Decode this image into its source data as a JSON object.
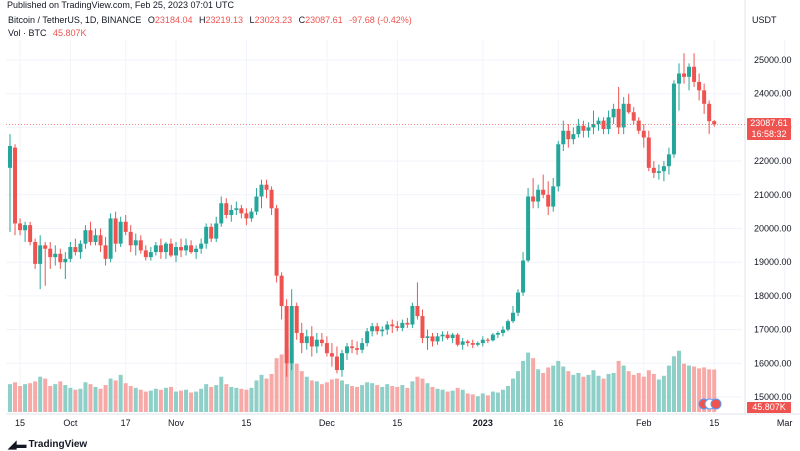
{
  "header": {
    "published": "Published on TradingView.com, Feb 25, 2023 07:01 UTC",
    "symbol": "Bitcoin / TetherUS, 1D, BINANCE",
    "ohlc": {
      "o_label": "O",
      "o": "23184.04",
      "h_label": "H",
      "h": "23219.13",
      "l_label": "L",
      "l": "23023.23",
      "c_label": "C",
      "c": "23087.61",
      "change": "-97.68 (-0.42%)"
    },
    "volume_label": "Vol · BTC",
    "volume_value": "45.807K",
    "currency": "USDT"
  },
  "price_tag": {
    "price": "23087.61",
    "countdown": "16:58:32"
  },
  "volume_tag": "45.807K",
  "branding": "TradingView",
  "colors": {
    "up": "#26a69a",
    "down": "#ef5350",
    "vol_up": "#8ecfc8",
    "vol_down": "#f7a9a7",
    "grid": "#f0f3fa"
  },
  "chart_data": {
    "type": "candlestick",
    "y_axis_ticks": [
      "25000.00",
      "24000.00",
      "23000.00",
      "22000.00",
      "21000.00",
      "20000.00",
      "19000.00",
      "18000.00",
      "17000.00",
      "16000.00",
      "15000.00"
    ],
    "ylim": [
      14700,
      25500
    ],
    "x_axis_ticks": [
      {
        "label": "15",
        "index": 2
      },
      {
        "label": "Oct",
        "index": 12
      },
      {
        "label": "17",
        "index": 23
      },
      {
        "label": "Nov",
        "index": 33
      },
      {
        "label": "15",
        "index": 47
      },
      {
        "label": "Dec",
        "index": 63
      },
      {
        "label": "15",
        "index": 77
      },
      {
        "label": "2023",
        "index": 94
      },
      {
        "label": "16",
        "index": 109
      },
      {
        "label": "Feb",
        "index": 126
      },
      {
        "label": "15",
        "index": 140
      },
      {
        "label": "Mar",
        "index": 154
      }
    ],
    "last_close": 23087.61,
    "volume_max": 70000,
    "candles": [
      {
        "o": 21800,
        "h": 22800,
        "l": 19900,
        "c": 22450,
        "v": 30000
      },
      {
        "o": 22400,
        "h": 22500,
        "l": 19800,
        "c": 20150,
        "v": 32000
      },
      {
        "o": 20150,
        "h": 20300,
        "l": 19800,
        "c": 19950,
        "v": 28000
      },
      {
        "o": 19950,
        "h": 20200,
        "l": 19600,
        "c": 20100,
        "v": 30000
      },
      {
        "o": 20100,
        "h": 20200,
        "l": 19500,
        "c": 19600,
        "v": 31000
      },
      {
        "o": 19600,
        "h": 19700,
        "l": 18800,
        "c": 18950,
        "v": 33000
      },
      {
        "o": 18950,
        "h": 19800,
        "l": 18200,
        "c": 19500,
        "v": 38000
      },
      {
        "o": 19500,
        "h": 19600,
        "l": 18300,
        "c": 19400,
        "v": 36000
      },
      {
        "o": 19400,
        "h": 19600,
        "l": 18800,
        "c": 19150,
        "v": 28000
      },
      {
        "o": 19150,
        "h": 19500,
        "l": 18900,
        "c": 19250,
        "v": 30000
      },
      {
        "o": 19250,
        "h": 19400,
        "l": 18800,
        "c": 19000,
        "v": 33000
      },
      {
        "o": 19000,
        "h": 19300,
        "l": 18500,
        "c": 19100,
        "v": 29000
      },
      {
        "o": 19100,
        "h": 19600,
        "l": 19000,
        "c": 19450,
        "v": 26000
      },
      {
        "o": 19450,
        "h": 19700,
        "l": 19200,
        "c": 19300,
        "v": 24000
      },
      {
        "o": 19300,
        "h": 19650,
        "l": 19100,
        "c": 19550,
        "v": 25000
      },
      {
        "o": 19550,
        "h": 20100,
        "l": 19400,
        "c": 19950,
        "v": 32000
      },
      {
        "o": 19950,
        "h": 20200,
        "l": 19500,
        "c": 19600,
        "v": 30000
      },
      {
        "o": 19600,
        "h": 20000,
        "l": 19500,
        "c": 19800,
        "v": 27000
      },
      {
        "o": 19800,
        "h": 20000,
        "l": 19300,
        "c": 19500,
        "v": 25000
      },
      {
        "o": 19500,
        "h": 19750,
        "l": 18900,
        "c": 19100,
        "v": 29000
      },
      {
        "o": 19100,
        "h": 20450,
        "l": 19000,
        "c": 20300,
        "v": 36000
      },
      {
        "o": 20300,
        "h": 20500,
        "l": 19300,
        "c": 19550,
        "v": 34000
      },
      {
        "o": 19550,
        "h": 20350,
        "l": 19450,
        "c": 20200,
        "v": 40000
      },
      {
        "o": 20200,
        "h": 20400,
        "l": 19800,
        "c": 19900,
        "v": 31000
      },
      {
        "o": 19900,
        "h": 20100,
        "l": 19300,
        "c": 19500,
        "v": 28000
      },
      {
        "o": 19500,
        "h": 19850,
        "l": 19200,
        "c": 19650,
        "v": 26000
      },
      {
        "o": 19650,
        "h": 19800,
        "l": 19250,
        "c": 19350,
        "v": 24000
      },
      {
        "o": 19350,
        "h": 19500,
        "l": 19050,
        "c": 19150,
        "v": 22000
      },
      {
        "o": 19150,
        "h": 19450,
        "l": 19050,
        "c": 19300,
        "v": 23000
      },
      {
        "o": 19300,
        "h": 19600,
        "l": 19200,
        "c": 19500,
        "v": 25000
      },
      {
        "o": 19500,
        "h": 19700,
        "l": 19100,
        "c": 19300,
        "v": 24000
      },
      {
        "o": 19300,
        "h": 19600,
        "l": 19100,
        "c": 19550,
        "v": 26000
      },
      {
        "o": 19550,
        "h": 19700,
        "l": 19150,
        "c": 19200,
        "v": 27000
      },
      {
        "o": 19200,
        "h": 19600,
        "l": 19000,
        "c": 19450,
        "v": 22000
      },
      {
        "o": 19450,
        "h": 19700,
        "l": 19150,
        "c": 19350,
        "v": 23000
      },
      {
        "o": 19350,
        "h": 19700,
        "l": 19200,
        "c": 19500,
        "v": 24000
      },
      {
        "o": 19500,
        "h": 19650,
        "l": 19250,
        "c": 19300,
        "v": 21000
      },
      {
        "o": 19300,
        "h": 19500,
        "l": 19100,
        "c": 19400,
        "v": 22000
      },
      {
        "o": 19400,
        "h": 19700,
        "l": 19250,
        "c": 19550,
        "v": 25000
      },
      {
        "o": 19550,
        "h": 20150,
        "l": 19400,
        "c": 20050,
        "v": 30000
      },
      {
        "o": 20050,
        "h": 20150,
        "l": 19600,
        "c": 19700,
        "v": 27000
      },
      {
        "o": 19700,
        "h": 20350,
        "l": 19600,
        "c": 20150,
        "v": 29000
      },
      {
        "o": 20150,
        "h": 20950,
        "l": 20050,
        "c": 20750,
        "v": 38000
      },
      {
        "o": 20750,
        "h": 20900,
        "l": 20300,
        "c": 20400,
        "v": 30000
      },
      {
        "o": 20400,
        "h": 20700,
        "l": 20200,
        "c": 20550,
        "v": 27000
      },
      {
        "o": 20550,
        "h": 20800,
        "l": 20400,
        "c": 20600,
        "v": 26000
      },
      {
        "o": 20600,
        "h": 20700,
        "l": 20300,
        "c": 20450,
        "v": 25000
      },
      {
        "o": 20450,
        "h": 20600,
        "l": 20100,
        "c": 20300,
        "v": 24000
      },
      {
        "o": 20300,
        "h": 20600,
        "l": 20200,
        "c": 20500,
        "v": 26000
      },
      {
        "o": 20500,
        "h": 21200,
        "l": 20400,
        "c": 20950,
        "v": 34000
      },
      {
        "o": 20950,
        "h": 21450,
        "l": 20600,
        "c": 21300,
        "v": 40000
      },
      {
        "o": 21300,
        "h": 21450,
        "l": 20900,
        "c": 21150,
        "v": 36000
      },
      {
        "o": 21150,
        "h": 21250,
        "l": 20400,
        "c": 20600,
        "v": 41000
      },
      {
        "o": 20600,
        "h": 20700,
        "l": 18400,
        "c": 18600,
        "v": 58000
      },
      {
        "o": 18600,
        "h": 18700,
        "l": 17300,
        "c": 17700,
        "v": 62000
      },
      {
        "o": 17700,
        "h": 17900,
        "l": 15600,
        "c": 16000,
        "v": 70000
      },
      {
        "o": 16000,
        "h": 18200,
        "l": 15800,
        "c": 17700,
        "v": 68000
      },
      {
        "o": 17700,
        "h": 17800,
        "l": 16700,
        "c": 16900,
        "v": 52000
      },
      {
        "o": 16900,
        "h": 17200,
        "l": 16300,
        "c": 16600,
        "v": 44000
      },
      {
        "o": 16600,
        "h": 17000,
        "l": 16400,
        "c": 16800,
        "v": 38000
      },
      {
        "o": 16800,
        "h": 17100,
        "l": 16200,
        "c": 16500,
        "v": 34000
      },
      {
        "o": 16500,
        "h": 16900,
        "l": 16300,
        "c": 16700,
        "v": 33000
      },
      {
        "o": 16700,
        "h": 16900,
        "l": 16500,
        "c": 16600,
        "v": 30000
      },
      {
        "o": 16600,
        "h": 16800,
        "l": 16200,
        "c": 16300,
        "v": 32000
      },
      {
        "o": 16300,
        "h": 16600,
        "l": 15900,
        "c": 16200,
        "v": 35000
      },
      {
        "o": 16200,
        "h": 16500,
        "l": 15700,
        "c": 15800,
        "v": 36000
      },
      {
        "o": 15800,
        "h": 16400,
        "l": 15600,
        "c": 16300,
        "v": 34000
      },
      {
        "o": 16300,
        "h": 16600,
        "l": 16100,
        "c": 16500,
        "v": 30000
      },
      {
        "o": 16500,
        "h": 16700,
        "l": 16300,
        "c": 16450,
        "v": 28000
      },
      {
        "o": 16450,
        "h": 16650,
        "l": 16250,
        "c": 16400,
        "v": 27000
      },
      {
        "o": 16400,
        "h": 16750,
        "l": 16300,
        "c": 16600,
        "v": 29000
      },
      {
        "o": 16600,
        "h": 17050,
        "l": 16500,
        "c": 16950,
        "v": 32000
      },
      {
        "o": 16950,
        "h": 17200,
        "l": 16800,
        "c": 17100,
        "v": 31000
      },
      {
        "o": 17100,
        "h": 17200,
        "l": 16850,
        "c": 16950,
        "v": 29000
      },
      {
        "o": 16950,
        "h": 17100,
        "l": 16800,
        "c": 17000,
        "v": 27000
      },
      {
        "o": 17000,
        "h": 17250,
        "l": 16850,
        "c": 17150,
        "v": 30000
      },
      {
        "o": 17150,
        "h": 17300,
        "l": 16900,
        "c": 17100,
        "v": 28000
      },
      {
        "o": 17100,
        "h": 17250,
        "l": 16950,
        "c": 17050,
        "v": 27000
      },
      {
        "o": 17050,
        "h": 17300,
        "l": 16950,
        "c": 17200,
        "v": 29000
      },
      {
        "o": 17200,
        "h": 17350,
        "l": 17050,
        "c": 17150,
        "v": 26000
      },
      {
        "o": 17150,
        "h": 17800,
        "l": 17050,
        "c": 17700,
        "v": 33000
      },
      {
        "o": 17700,
        "h": 18400,
        "l": 17300,
        "c": 17400,
        "v": 38000
      },
      {
        "o": 17400,
        "h": 17600,
        "l": 16600,
        "c": 16750,
        "v": 36000
      },
      {
        "o": 16750,
        "h": 17000,
        "l": 16400,
        "c": 16800,
        "v": 31000
      },
      {
        "o": 16800,
        "h": 16900,
        "l": 16500,
        "c": 16650,
        "v": 27000
      },
      {
        "o": 16650,
        "h": 16900,
        "l": 16550,
        "c": 16800,
        "v": 25000
      },
      {
        "o": 16800,
        "h": 16950,
        "l": 16650,
        "c": 16850,
        "v": 24000
      },
      {
        "o": 16850,
        "h": 16950,
        "l": 16700,
        "c": 16750,
        "v": 22000
      },
      {
        "o": 16750,
        "h": 16900,
        "l": 16600,
        "c": 16850,
        "v": 23000
      },
      {
        "o": 16850,
        "h": 16900,
        "l": 16500,
        "c": 16550,
        "v": 26000
      },
      {
        "o": 16550,
        "h": 16750,
        "l": 16400,
        "c": 16650,
        "v": 24000
      },
      {
        "o": 16650,
        "h": 16700,
        "l": 16500,
        "c": 16600,
        "v": 20000
      },
      {
        "o": 16600,
        "h": 16700,
        "l": 16450,
        "c": 16550,
        "v": 19000
      },
      {
        "o": 16550,
        "h": 16650,
        "l": 16500,
        "c": 16600,
        "v": 17000
      },
      {
        "o": 16600,
        "h": 16800,
        "l": 16500,
        "c": 16700,
        "v": 20000
      },
      {
        "o": 16700,
        "h": 16750,
        "l": 16600,
        "c": 16680,
        "v": 18000
      },
      {
        "o": 16680,
        "h": 16900,
        "l": 16650,
        "c": 16850,
        "v": 22000
      },
      {
        "o": 16850,
        "h": 16950,
        "l": 16750,
        "c": 16900,
        "v": 21000
      },
      {
        "o": 16900,
        "h": 17100,
        "l": 16800,
        "c": 17000,
        "v": 24000
      },
      {
        "o": 17000,
        "h": 17300,
        "l": 16950,
        "c": 17250,
        "v": 28000
      },
      {
        "o": 17250,
        "h": 17700,
        "l": 17200,
        "c": 17500,
        "v": 36000
      },
      {
        "o": 17500,
        "h": 18200,
        "l": 17400,
        "c": 18100,
        "v": 44000
      },
      {
        "o": 18100,
        "h": 19300,
        "l": 18000,
        "c": 19050,
        "v": 55000
      },
      {
        "o": 19050,
        "h": 21200,
        "l": 19000,
        "c": 20950,
        "v": 64000
      },
      {
        "o": 20950,
        "h": 21500,
        "l": 20600,
        "c": 20800,
        "v": 58000
      },
      {
        "o": 20800,
        "h": 21300,
        "l": 20600,
        "c": 21150,
        "v": 46000
      },
      {
        "o": 21150,
        "h": 21600,
        "l": 20900,
        "c": 21000,
        "v": 42000
      },
      {
        "o": 21000,
        "h": 21400,
        "l": 20400,
        "c": 20650,
        "v": 48000
      },
      {
        "o": 20650,
        "h": 21500,
        "l": 20500,
        "c": 21250,
        "v": 50000
      },
      {
        "o": 21250,
        "h": 22600,
        "l": 21100,
        "c": 22500,
        "v": 55000
      },
      {
        "o": 22500,
        "h": 23200,
        "l": 22300,
        "c": 22900,
        "v": 49000
      },
      {
        "o": 22900,
        "h": 23100,
        "l": 22400,
        "c": 22650,
        "v": 44000
      },
      {
        "o": 22650,
        "h": 23000,
        "l": 22500,
        "c": 22800,
        "v": 40000
      },
      {
        "o": 22800,
        "h": 23250,
        "l": 22700,
        "c": 23050,
        "v": 42000
      },
      {
        "o": 23050,
        "h": 23200,
        "l": 22700,
        "c": 22900,
        "v": 38000
      },
      {
        "o": 22900,
        "h": 23150,
        "l": 22700,
        "c": 23000,
        "v": 40000
      },
      {
        "o": 23000,
        "h": 23500,
        "l": 22800,
        "c": 23100,
        "v": 45000
      },
      {
        "o": 23100,
        "h": 23300,
        "l": 22900,
        "c": 23200,
        "v": 39000
      },
      {
        "o": 23200,
        "h": 23300,
        "l": 22800,
        "c": 22950,
        "v": 36000
      },
      {
        "o": 22950,
        "h": 23500,
        "l": 22800,
        "c": 23300,
        "v": 41000
      },
      {
        "o": 23300,
        "h": 23700,
        "l": 23100,
        "c": 23550,
        "v": 42000
      },
      {
        "o": 23550,
        "h": 24200,
        "l": 22800,
        "c": 23000,
        "v": 55000
      },
      {
        "o": 23000,
        "h": 23900,
        "l": 22800,
        "c": 23700,
        "v": 50000
      },
      {
        "o": 23700,
        "h": 24000,
        "l": 23400,
        "c": 23450,
        "v": 44000
      },
      {
        "o": 23450,
        "h": 23600,
        "l": 23100,
        "c": 23200,
        "v": 40000
      },
      {
        "o": 23200,
        "h": 23300,
        "l": 22800,
        "c": 22900,
        "v": 42000
      },
      {
        "o": 22900,
        "h": 23100,
        "l": 22400,
        "c": 22700,
        "v": 38000
      },
      {
        "o": 22700,
        "h": 22900,
        "l": 21700,
        "c": 21800,
        "v": 45000
      },
      {
        "o": 21800,
        "h": 22000,
        "l": 21500,
        "c": 21650,
        "v": 41000
      },
      {
        "o": 21650,
        "h": 21900,
        "l": 21450,
        "c": 21700,
        "v": 35000
      },
      {
        "o": 21700,
        "h": 22000,
        "l": 21400,
        "c": 21850,
        "v": 39000
      },
      {
        "o": 21850,
        "h": 22400,
        "l": 21600,
        "c": 22200,
        "v": 50000
      },
      {
        "o": 22200,
        "h": 24400,
        "l": 22100,
        "c": 24300,
        "v": 60000
      },
      {
        "o": 24300,
        "h": 24900,
        "l": 23500,
        "c": 24600,
        "v": 66000
      },
      {
        "o": 24600,
        "h": 25200,
        "l": 24300,
        "c": 24500,
        "v": 52000
      },
      {
        "o": 24500,
        "h": 24900,
        "l": 24100,
        "c": 24800,
        "v": 50000
      },
      {
        "o": 24800,
        "h": 25200,
        "l": 24200,
        "c": 24350,
        "v": 49000
      },
      {
        "o": 24350,
        "h": 24600,
        "l": 23800,
        "c": 24100,
        "v": 47000
      },
      {
        "o": 24100,
        "h": 24300,
        "l": 23400,
        "c": 23700,
        "v": 48000
      },
      {
        "o": 23700,
        "h": 23800,
        "l": 22800,
        "c": 23184,
        "v": 46000
      },
      {
        "o": 23184,
        "h": 23219,
        "l": 23023,
        "c": 23088,
        "v": 45807
      }
    ]
  }
}
